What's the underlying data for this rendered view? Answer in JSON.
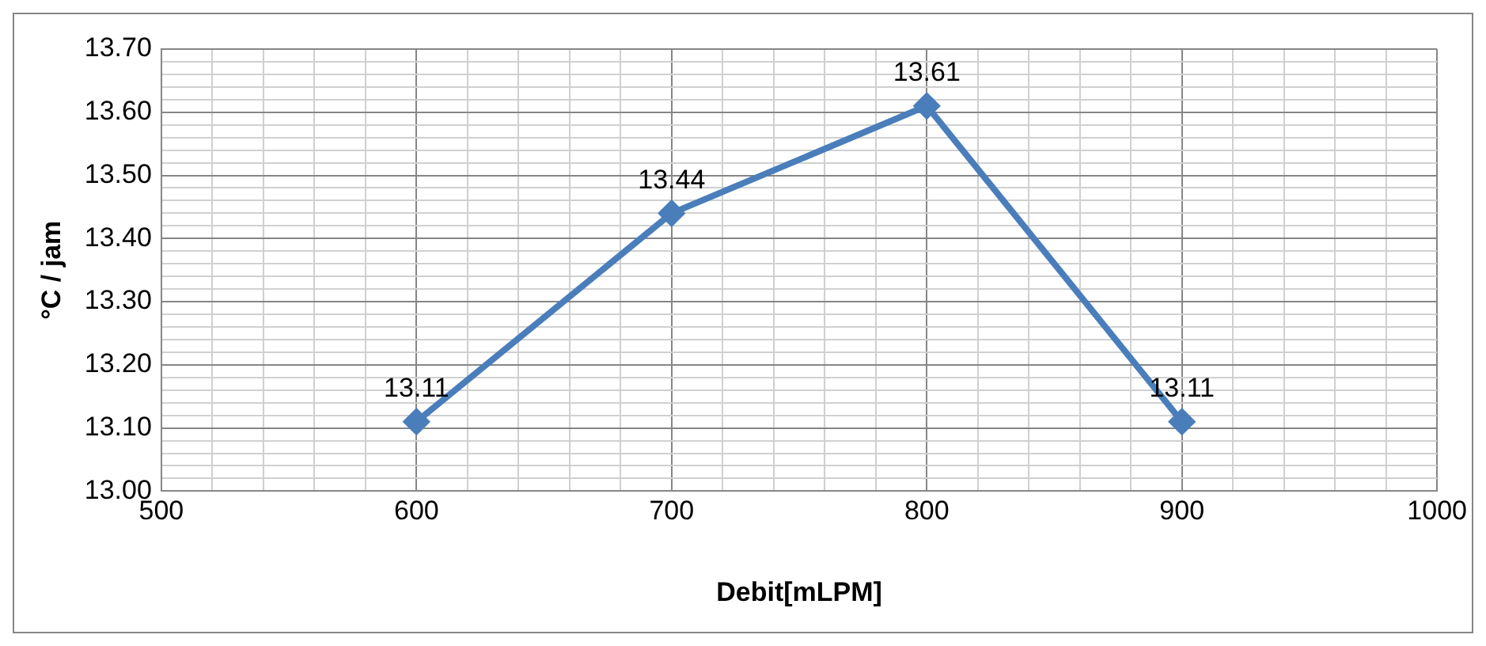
{
  "chart_data": {
    "type": "line",
    "xlabel": "Debit[mLPM]",
    "ylabel": "°C / jam",
    "x": [
      600,
      700,
      800,
      900
    ],
    "series": [
      {
        "color": "#4a7ebb",
        "values": [
          13.11,
          13.44,
          13.61,
          13.11
        ]
      }
    ],
    "xlim": [
      500,
      1000
    ],
    "xticks": [
      500,
      {
        "value": 520,
        "label": null
      },
      {
        "value": 540,
        "label": null
      },
      {
        "value": 560,
        "label": null
      },
      {
        "value": 580,
        "label": null
      },
      600,
      {
        "value": 620,
        "label": null
      },
      {
        "value": 640,
        "label": null
      },
      {
        "value": 660,
        "label": null
      },
      {
        "value": 680,
        "label": null
      },
      700,
      {
        "value": 720,
        "label": null
      },
      {
        "value": 740,
        "label": null
      },
      {
        "value": 760,
        "label": null
      },
      {
        "value": 780,
        "label": null
      },
      800,
      {
        "value": 820,
        "label": null
      },
      {
        "value": 840,
        "label": null
      },
      {
        "value": 860,
        "label": null
      },
      {
        "value": 880,
        "label": null
      },
      900,
      {
        "value": 920,
        "label": null
      },
      {
        "value": 940,
        "label": null
      },
      {
        "value": 960,
        "label": null
      },
      {
        "value": 980,
        "label": null
      },
      1000
    ],
    "ylim": [
      13.0,
      13.7
    ],
    "yticks": [
      {
        "value": 13.0,
        "label": "13.00"
      },
      {
        "value": 13.02,
        "label": null
      },
      {
        "value": 13.04,
        "label": null
      },
      {
        "value": 13.06,
        "label": null
      },
      {
        "value": 13.08,
        "label": null
      },
      {
        "value": 13.1,
        "label": "13.10"
      },
      {
        "value": 13.12,
        "label": null
      },
      {
        "value": 13.14,
        "label": null
      },
      {
        "value": 13.16,
        "label": null
      },
      {
        "value": 13.18,
        "label": null
      },
      {
        "value": 13.2,
        "label": "13.20"
      },
      {
        "value": 13.22,
        "label": null
      },
      {
        "value": 13.24,
        "label": null
      },
      {
        "value": 13.26,
        "label": null
      },
      {
        "value": 13.28,
        "label": null
      },
      {
        "value": 13.3,
        "label": "13.30"
      },
      {
        "value": 13.32,
        "label": null
      },
      {
        "value": 13.34,
        "label": null
      },
      {
        "value": 13.36,
        "label": null
      },
      {
        "value": 13.38,
        "label": null
      },
      {
        "value": 13.4,
        "label": "13.40"
      },
      {
        "value": 13.42,
        "label": null
      },
      {
        "value": 13.44,
        "label": null
      },
      {
        "value": 13.46,
        "label": null
      },
      {
        "value": 13.48,
        "label": null
      },
      {
        "value": 13.5,
        "label": "13.50"
      },
      {
        "value": 13.52,
        "label": null
      },
      {
        "value": 13.54,
        "label": null
      },
      {
        "value": 13.56,
        "label": null
      },
      {
        "value": 13.58,
        "label": null
      },
      {
        "value": 13.6,
        "label": "13.60"
      },
      {
        "value": 13.62,
        "label": null
      },
      {
        "value": 13.64,
        "label": null
      },
      {
        "value": 13.66,
        "label": null
      },
      {
        "value": 13.68,
        "label": null
      },
      {
        "value": 13.7,
        "label": "13.70"
      }
    ],
    "grid": true,
    "marker": "diamond",
    "line_style": "solid",
    "data_labels": true,
    "legend": false
  }
}
